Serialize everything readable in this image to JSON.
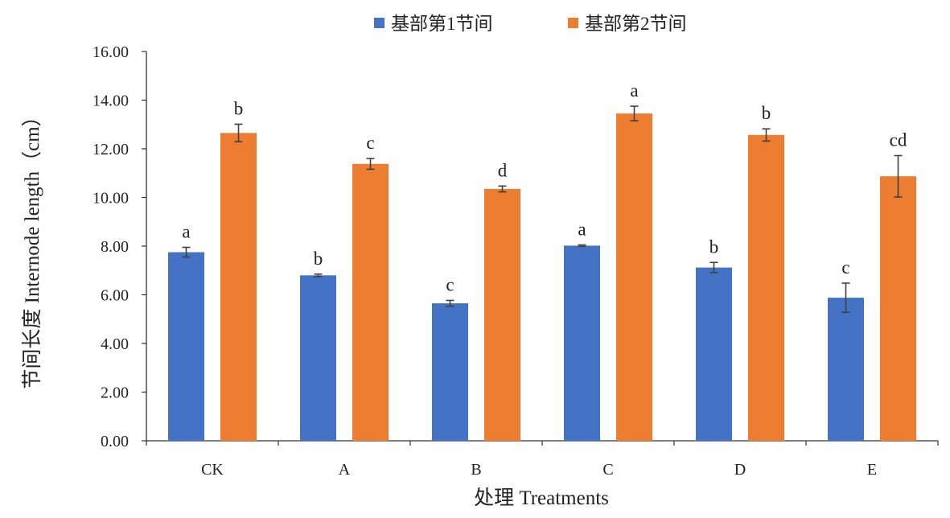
{
  "chart_data": {
    "type": "bar",
    "title": "",
    "xlabel": "处理 Treatments",
    "ylabel": "节间长度 Internode length（cm）",
    "ylim": [
      0,
      16
    ],
    "yticks": [
      "0.00",
      "2.00",
      "4.00",
      "6.00",
      "8.00",
      "10.00",
      "12.00",
      "14.00",
      "16.00"
    ],
    "grid": false,
    "legend_position": "top",
    "categories": [
      "CK",
      "A",
      "B",
      "C",
      "D",
      "E"
    ],
    "series": [
      {
        "name": "基部第1节间",
        "color": "#4472C4",
        "values": [
          7.75,
          6.8,
          5.65,
          8.02,
          7.12,
          5.88
        ],
        "errors": [
          0.2,
          0.05,
          0.12,
          0.03,
          0.21,
          0.6
        ],
        "letters": [
          "a",
          "b",
          "c",
          "a",
          "b",
          "c"
        ]
      },
      {
        "name": "基部第2节间",
        "color": "#ED7D31",
        "values": [
          12.65,
          11.38,
          10.35,
          13.45,
          12.57,
          10.87
        ],
        "errors": [
          0.36,
          0.22,
          0.12,
          0.3,
          0.25,
          0.85
        ],
        "letters": [
          "b",
          "c",
          "d",
          "a",
          "b",
          "cd"
        ]
      }
    ]
  }
}
